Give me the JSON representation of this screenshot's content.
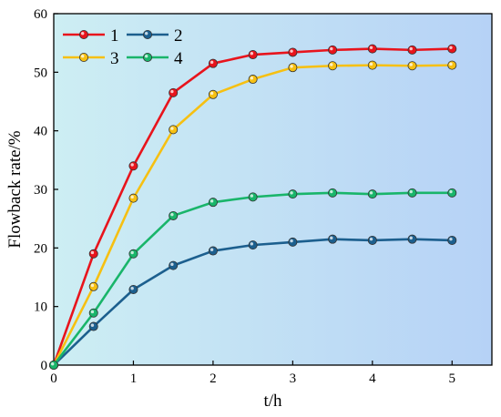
{
  "chart_data": {
    "type": "line",
    "xlabel": "t/h",
    "ylabel": "Flowback rate/%",
    "xlim": [
      0,
      5.5
    ],
    "ylim": [
      0,
      60
    ],
    "xticks": [
      0,
      1,
      2,
      3,
      4,
      5
    ],
    "yticks": [
      0,
      10,
      20,
      30,
      40,
      50,
      60
    ],
    "xtick_labels": [
      "0",
      "1",
      "2",
      "3",
      "4",
      "5"
    ],
    "ytick_labels": [
      "0",
      "10",
      "20",
      "30",
      "40",
      "50",
      "60"
    ],
    "grid": false,
    "legend_position": "top-left",
    "background_gradient": [
      "#cdeef3",
      "#b6d2f6"
    ],
    "x": [
      0,
      0.5,
      1,
      1.5,
      2,
      2.5,
      3,
      3.5,
      4,
      4.5,
      5
    ],
    "series": [
      {
        "name": "1",
        "color": "#e8141c",
        "values": [
          0,
          19,
          34,
          46.5,
          51.5,
          53,
          53.4,
          53.8,
          54,
          53.8,
          54
        ]
      },
      {
        "name": "2",
        "color": "#1c5f8e",
        "values": [
          0,
          6.6,
          12.9,
          17,
          19.5,
          20.5,
          21,
          21.5,
          21.3,
          21.5,
          21.3
        ]
      },
      {
        "name": "3",
        "color": "#f6c012",
        "values": [
          0,
          13.4,
          28.5,
          40.2,
          46.2,
          48.8,
          50.8,
          51.1,
          51.2,
          51.1,
          51.2
        ]
      },
      {
        "name": "4",
        "color": "#19b56a",
        "values": [
          0,
          8.9,
          19,
          25.5,
          27.8,
          28.7,
          29.2,
          29.4,
          29.2,
          29.4,
          29.4
        ]
      }
    ]
  }
}
